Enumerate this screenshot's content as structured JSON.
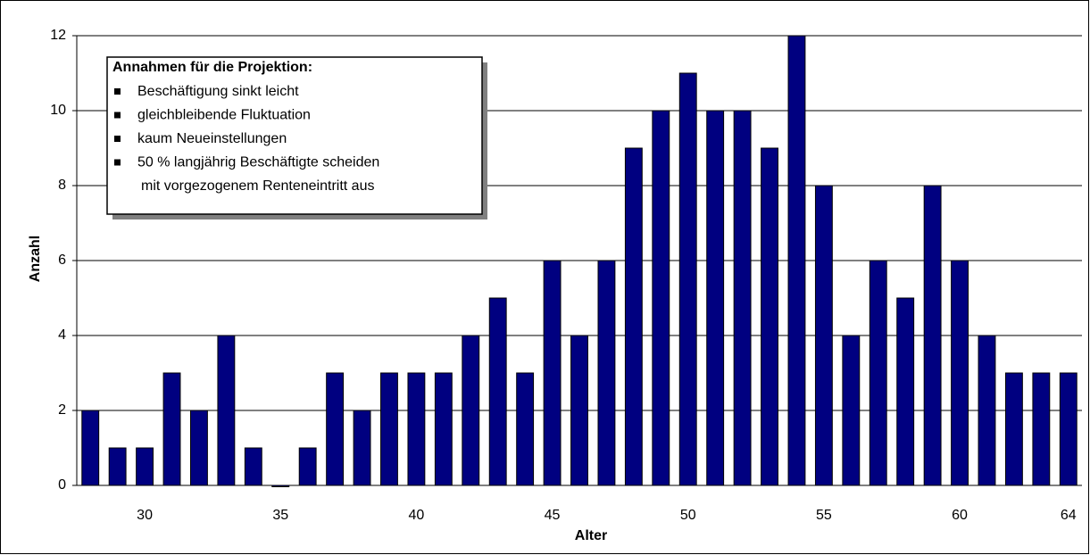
{
  "chart_data": {
    "type": "bar",
    "y_label": "Anzahl",
    "x_label": "Alter",
    "categories": [
      null,
      null,
      "30",
      null,
      null,
      null,
      null,
      "35",
      null,
      null,
      null,
      null,
      "40",
      null,
      null,
      null,
      null,
      "45",
      null,
      null,
      null,
      null,
      "50",
      null,
      null,
      null,
      null,
      "55",
      null,
      null,
      null,
      null,
      "60",
      null,
      null,
      null,
      "64"
    ],
    "values": [
      2,
      1,
      1,
      3,
      2,
      4,
      1,
      0,
      1,
      3,
      2,
      3,
      3,
      3,
      4,
      5,
      3,
      6,
      4,
      6,
      9,
      10,
      11,
      10,
      10,
      9,
      12,
      8,
      4,
      6,
      5,
      8,
      6,
      4,
      3,
      3,
      3
    ],
    "color": "#000080",
    "ylim": [
      0,
      12
    ],
    "yticks": [
      0,
      2,
      4,
      6,
      8,
      10,
      12
    ],
    "grid": true,
    "annotation": {
      "title": "Annahmen für die Projektion:",
      "items": [
        [
          "Beschäftigung sinkt leicht"
        ],
        [
          "gleichbleibende Fluktuation"
        ],
        [
          "kaum Neueinstellungen"
        ],
        [
          "50 % langjährig Beschäftigte scheiden",
          "mit vorgezogenem Renteneintritt aus"
        ]
      ]
    }
  }
}
